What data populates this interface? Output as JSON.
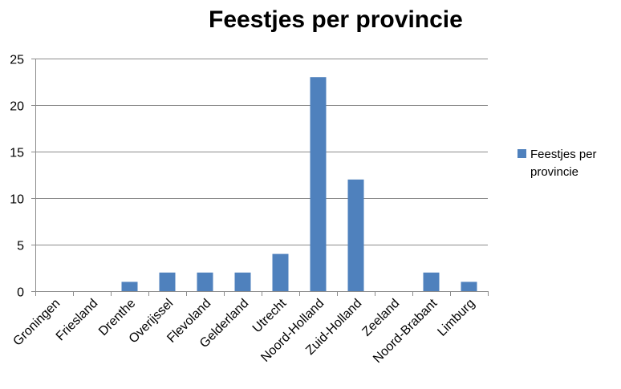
{
  "chart_data": {
    "type": "bar",
    "title": "Feestjes per provincie",
    "xlabel": "",
    "ylabel": "",
    "categories": [
      "Groningen",
      "Friesland",
      "Drenthe",
      "Overijssel",
      "Flevoland",
      "Gelderland",
      "Utrecht",
      "Noord-Holland",
      "Zuid-Holland",
      "Zeeland",
      "Noord-Brabant",
      "Limburg"
    ],
    "series": [
      {
        "name": "Feestjes per provincie",
        "values": [
          0,
          0,
          1,
          2,
          2,
          2,
          4,
          23,
          12,
          0,
          2,
          1
        ]
      }
    ],
    "ylim": [
      0,
      25
    ],
    "yticks": [
      0,
      5,
      10,
      15,
      20,
      25
    ],
    "grid": true,
    "legend_position": "right",
    "color": "#4f81bd"
  }
}
